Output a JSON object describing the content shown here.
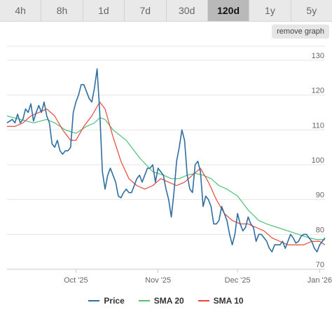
{
  "tabs": [
    {
      "label": "4h"
    },
    {
      "label": "8h"
    },
    {
      "label": "1d"
    },
    {
      "label": "7d"
    },
    {
      "label": "30d"
    },
    {
      "label": "120d",
      "active": true
    },
    {
      "label": "1y"
    },
    {
      "label": "5y"
    }
  ],
  "remove_graph_label": "remove graph",
  "colors": {
    "price": "#2f6ea0",
    "sma20": "#4cc27a",
    "sma10": "#e8473a",
    "grid": "#e6e6e6",
    "axis_text": "#666666"
  },
  "chart_data": {
    "type": "line",
    "ylim": [
      70,
      134
    ],
    "y_ticks": [
      70,
      80,
      90,
      100,
      110,
      120,
      130
    ],
    "x_tick_labels": [
      "Oct '25",
      "Nov '25",
      "Dec '25",
      "Jan '26"
    ],
    "x_ticks": [
      "2025-10-01",
      "2025-11-01",
      "2025-12-01",
      "2026-01-01"
    ],
    "x_range": [
      "2025-09-05",
      "2026-01-03"
    ],
    "grid": true,
    "legend_position": "bottom",
    "series": [
      {
        "name": "Price",
        "points": [
          [
            "2025-09-05",
            112
          ],
          [
            "2025-09-06",
            112.5
          ],
          [
            "2025-09-07",
            113
          ],
          [
            "2025-09-08",
            112
          ],
          [
            "2025-09-09",
            114.5
          ],
          [
            "2025-09-10",
            112
          ],
          [
            "2025-09-11",
            113
          ],
          [
            "2025-09-12",
            116
          ],
          [
            "2025-09-13",
            115
          ],
          [
            "2025-09-14",
            117.5
          ],
          [
            "2025-09-15",
            112.5
          ],
          [
            "2025-09-16",
            115
          ],
          [
            "2025-09-17",
            117
          ],
          [
            "2025-09-18",
            115
          ],
          [
            "2025-09-19",
            118
          ],
          [
            "2025-09-20",
            114
          ],
          [
            "2025-09-21",
            112
          ],
          [
            "2025-09-22",
            106
          ],
          [
            "2025-09-23",
            105
          ],
          [
            "2025-09-24",
            107
          ],
          [
            "2025-09-25",
            104
          ],
          [
            "2025-09-26",
            103
          ],
          [
            "2025-09-27",
            104
          ],
          [
            "2025-09-28",
            104
          ],
          [
            "2025-09-29",
            105
          ],
          [
            "2025-09-30",
            115
          ],
          [
            "2025-10-01",
            118
          ],
          [
            "2025-10-02",
            120
          ],
          [
            "2025-10-03",
            123
          ],
          [
            "2025-10-04",
            123
          ],
          [
            "2025-10-05",
            121
          ],
          [
            "2025-10-06",
            119
          ],
          [
            "2025-10-07",
            118
          ],
          [
            "2025-10-08",
            122
          ],
          [
            "2025-10-09",
            127.5
          ],
          [
            "2025-10-10",
            115
          ],
          [
            "2025-10-11",
            98
          ],
          [
            "2025-10-12",
            93
          ],
          [
            "2025-10-13",
            97
          ],
          [
            "2025-10-14",
            99
          ],
          [
            "2025-10-15",
            97
          ],
          [
            "2025-10-16",
            95
          ],
          [
            "2025-10-17",
            91
          ],
          [
            "2025-10-18",
            90.5
          ],
          [
            "2025-10-19",
            92
          ],
          [
            "2025-10-20",
            93
          ],
          [
            "2025-10-21",
            92
          ],
          [
            "2025-10-22",
            92
          ],
          [
            "2025-10-23",
            94
          ],
          [
            "2025-10-24",
            96
          ],
          [
            "2025-10-25",
            97
          ],
          [
            "2025-10-26",
            95
          ],
          [
            "2025-10-27",
            97
          ],
          [
            "2025-10-28",
            99
          ],
          [
            "2025-10-29",
            99
          ],
          [
            "2025-10-30",
            100
          ],
          [
            "2025-10-31",
            95
          ],
          [
            "2025-11-01",
            99
          ],
          [
            "2025-11-02",
            98
          ],
          [
            "2025-11-03",
            97
          ],
          [
            "2025-11-04",
            93
          ],
          [
            "2025-11-05",
            90
          ],
          [
            "2025-11-06",
            85
          ],
          [
            "2025-11-07",
            92
          ],
          [
            "2025-11-08",
            101
          ],
          [
            "2025-11-09",
            105
          ],
          [
            "2025-11-10",
            110
          ],
          [
            "2025-11-11",
            107
          ],
          [
            "2025-11-12",
            97
          ],
          [
            "2025-11-13",
            93
          ],
          [
            "2025-11-14",
            92
          ],
          [
            "2025-11-15",
            100
          ],
          [
            "2025-11-16",
            101
          ],
          [
            "2025-11-17",
            98
          ],
          [
            "2025-11-18",
            88
          ],
          [
            "2025-11-19",
            91
          ],
          [
            "2025-11-20",
            90
          ],
          [
            "2025-11-21",
            88
          ],
          [
            "2025-11-22",
            83
          ],
          [
            "2025-11-23",
            83
          ],
          [
            "2025-11-24",
            84
          ],
          [
            "2025-11-25",
            88
          ],
          [
            "2025-11-26",
            86
          ],
          [
            "2025-11-27",
            84
          ],
          [
            "2025-11-28",
            80
          ],
          [
            "2025-11-29",
            77
          ],
          [
            "2025-11-30",
            80
          ],
          [
            "2025-12-01",
            86
          ],
          [
            "2025-12-02",
            83
          ],
          [
            "2025-12-03",
            81
          ],
          [
            "2025-12-04",
            82
          ],
          [
            "2025-12-05",
            85
          ],
          [
            "2025-12-06",
            83
          ],
          [
            "2025-12-07",
            82
          ],
          [
            "2025-12-08",
            78
          ],
          [
            "2025-12-09",
            80
          ],
          [
            "2025-12-10",
            80
          ],
          [
            "2025-12-11",
            79
          ],
          [
            "2025-12-12",
            78
          ],
          [
            "2025-12-13",
            76
          ],
          [
            "2025-12-14",
            75
          ],
          [
            "2025-12-15",
            77
          ],
          [
            "2025-12-16",
            77
          ],
          [
            "2025-12-17",
            77
          ],
          [
            "2025-12-18",
            78
          ],
          [
            "2025-12-19",
            76
          ],
          [
            "2025-12-20",
            78
          ],
          [
            "2025-12-21",
            80
          ],
          [
            "2025-12-22",
            79
          ],
          [
            "2025-12-23",
            77.5
          ],
          [
            "2025-12-24",
            78
          ],
          [
            "2025-12-25",
            79.5
          ],
          [
            "2025-12-26",
            80
          ],
          [
            "2025-12-27",
            80
          ],
          [
            "2025-12-28",
            79
          ],
          [
            "2025-12-29",
            78
          ],
          [
            "2025-12-30",
            76
          ],
          [
            "2025-12-31",
            75
          ],
          [
            "2026-01-01",
            77
          ],
          [
            "2026-01-02",
            78
          ],
          [
            "2026-01-03",
            79
          ]
        ]
      },
      {
        "name": "SMA 20",
        "points": [
          [
            "2025-09-05",
            114
          ],
          [
            "2025-09-10",
            113
          ],
          [
            "2025-09-15",
            112
          ],
          [
            "2025-09-20",
            113
          ],
          [
            "2025-09-23",
            112
          ],
          [
            "2025-09-27",
            110
          ],
          [
            "2025-10-01",
            109
          ],
          [
            "2025-10-05",
            111
          ],
          [
            "2025-10-08",
            112
          ],
          [
            "2025-10-10",
            113.5
          ],
          [
            "2025-10-12",
            113
          ],
          [
            "2025-10-15",
            110
          ],
          [
            "2025-10-20",
            107
          ],
          [
            "2025-10-25",
            102
          ],
          [
            "2025-10-30",
            98
          ],
          [
            "2025-11-03",
            97
          ],
          [
            "2025-11-06",
            96
          ],
          [
            "2025-11-09",
            96
          ],
          [
            "2025-11-12",
            97
          ],
          [
            "2025-11-15",
            97.5
          ],
          [
            "2025-11-18",
            97
          ],
          [
            "2025-11-21",
            96
          ],
          [
            "2025-11-24",
            94
          ],
          [
            "2025-11-27",
            93
          ],
          [
            "2025-12-01",
            91
          ],
          [
            "2025-12-05",
            87
          ],
          [
            "2025-12-09",
            84
          ],
          [
            "2025-12-12",
            83
          ],
          [
            "2025-12-16",
            82
          ],
          [
            "2025-12-20",
            81
          ],
          [
            "2025-12-24",
            80
          ],
          [
            "2025-12-28",
            79
          ],
          [
            "2025-12-31",
            78.5
          ],
          [
            "2026-01-03",
            78.5
          ]
        ]
      },
      {
        "name": "SMA 10",
        "points": [
          [
            "2025-09-05",
            111
          ],
          [
            "2025-09-08",
            111
          ],
          [
            "2025-09-11",
            112
          ],
          [
            "2025-09-14",
            114
          ],
          [
            "2025-09-17",
            115
          ],
          [
            "2025-09-20",
            116
          ],
          [
            "2025-09-23",
            114
          ],
          [
            "2025-09-26",
            110
          ],
          [
            "2025-09-29",
            107
          ],
          [
            "2025-10-01",
            107
          ],
          [
            "2025-10-04",
            111
          ],
          [
            "2025-10-07",
            114
          ],
          [
            "2025-10-10",
            118
          ],
          [
            "2025-10-12",
            116
          ],
          [
            "2025-10-15",
            108
          ],
          [
            "2025-10-18",
            101
          ],
          [
            "2025-10-21",
            96
          ],
          [
            "2025-10-24",
            94
          ],
          [
            "2025-10-27",
            93
          ],
          [
            "2025-10-30",
            94
          ],
          [
            "2025-11-02",
            96
          ],
          [
            "2025-11-05",
            95
          ],
          [
            "2025-11-08",
            94
          ],
          [
            "2025-11-11",
            95
          ],
          [
            "2025-11-14",
            97
          ],
          [
            "2025-11-17",
            99
          ],
          [
            "2025-11-20",
            95
          ],
          [
            "2025-11-23",
            90
          ],
          [
            "2025-11-26",
            86
          ],
          [
            "2025-11-29",
            84
          ],
          [
            "2025-12-02",
            83
          ],
          [
            "2025-12-05",
            83
          ],
          [
            "2025-12-08",
            82
          ],
          [
            "2025-12-11",
            81
          ],
          [
            "2025-12-14",
            79
          ],
          [
            "2025-12-17",
            78
          ],
          [
            "2025-12-20",
            77
          ],
          [
            "2025-12-23",
            77
          ],
          [
            "2025-12-26",
            77
          ],
          [
            "2025-12-29",
            78
          ],
          [
            "2026-01-01",
            78
          ],
          [
            "2026-01-03",
            77
          ]
        ]
      }
    ]
  }
}
